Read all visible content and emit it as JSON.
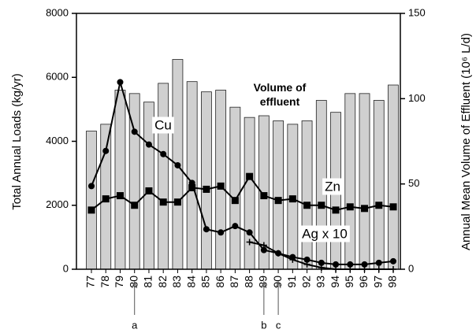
{
  "chart_data": {
    "type": "bar",
    "y_label": "Total Annual Loads (kg/yr)",
    "y2_label": "Annual Mean Volume of Effluent (10⁶ L/d)",
    "categories": [
      "77",
      "78",
      "79",
      "80",
      "81",
      "82",
      "83",
      "84",
      "85",
      "86",
      "87",
      "88",
      "89",
      "90",
      "91",
      "92",
      "93",
      "94",
      "95",
      "96",
      "97",
      "98"
    ],
    "ylim": [
      0,
      8000
    ],
    "yticks": [
      0,
      2000,
      4000,
      6000,
      8000
    ],
    "y2lim": [
      0,
      150
    ],
    "y2ticks": [
      0,
      50,
      100,
      150
    ],
    "series": [
      {
        "name": "Volume of effluent",
        "type": "bar",
        "axis": "y2",
        "color": "#d0d0d0",
        "values": [
          81,
          85,
          105,
          103,
          98,
          109,
          123,
          110,
          104,
          105,
          95,
          89,
          90,
          87,
          85,
          87,
          99,
          92,
          103,
          103,
          99,
          108
        ]
      },
      {
        "name": "Cu",
        "type": "line",
        "marker": "circle",
        "color": "#000000",
        "values": [
          2600,
          3700,
          5850,
          4300,
          3900,
          3600,
          3250,
          2700,
          1250,
          1150,
          1350,
          1150,
          600,
          500,
          380,
          300,
          200,
          150,
          150,
          150,
          200,
          250
        ]
      },
      {
        "name": "Zn",
        "type": "line",
        "marker": "square",
        "color": "#000000",
        "values": [
          1850,
          2200,
          2300,
          2000,
          2450,
          2100,
          2100,
          2550,
          2500,
          2600,
          2150,
          2900,
          2300,
          2150,
          2200,
          2000,
          2000,
          1850,
          1950,
          1900,
          2000,
          1950
        ]
      },
      {
        "name": "Ag x 10",
        "type": "line",
        "marker": "plus",
        "color": "#000000",
        "values": [
          null,
          null,
          null,
          null,
          null,
          null,
          null,
          null,
          null,
          null,
          null,
          850,
          750,
          500,
          300,
          150,
          50,
          0,
          0,
          0,
          0,
          0
        ]
      }
    ],
    "annotations": [
      {
        "text": "a",
        "category": "80"
      },
      {
        "text": "b",
        "category": "89"
      },
      {
        "text": "c",
        "category": "90"
      }
    ]
  }
}
